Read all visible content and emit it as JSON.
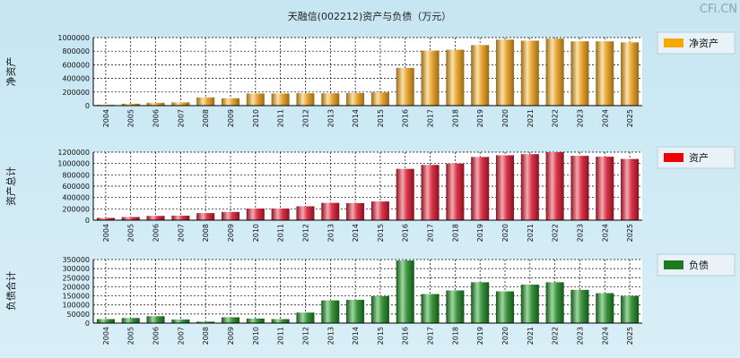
{
  "title": "天融信(002212)资产与负债（万元）",
  "watermark": "CFi.CN",
  "chart_data": [
    {
      "type": "bar",
      "key": "net-assets",
      "title": "天融信(002212)资产与负债（万元）",
      "ylabel": "净资产",
      "legend": "净资产",
      "colors": {
        "legend": "#f5a800",
        "base": "#e8a636",
        "light": "#fbe1a8",
        "dark": "#9a6a14"
      },
      "categories": [
        "2004",
        "2005",
        "2006",
        "2007",
        "2008",
        "2009",
        "2010",
        "2011",
        "2012",
        "2013",
        "2014",
        "2015",
        "2016",
        "2017",
        "2018",
        "2019",
        "2020",
        "2021",
        "2022",
        "2023",
        "2024",
        "2025"
      ],
      "values": [
        12000,
        28000,
        42000,
        48000,
        120000,
        108000,
        178000,
        178000,
        182000,
        182000,
        185000,
        195000,
        555000,
        808000,
        822000,
        890000,
        970000,
        955000,
        985000,
        945000,
        945000,
        930000
      ],
      "ylim": [
        0,
        1000000
      ],
      "yticks": [
        {
          "v": 0,
          "label": "0"
        },
        {
          "v": 200000,
          "label": "200000"
        },
        {
          "v": 400000,
          "label": "400000"
        },
        {
          "v": 600000,
          "label": "600000"
        },
        {
          "v": 800000,
          "label": "800000"
        },
        {
          "v": 1000000,
          "label": "1000000"
        }
      ]
    },
    {
      "type": "bar",
      "key": "total-assets",
      "ylabel": "资产总计",
      "legend": "资产",
      "colors": {
        "legend": "#ee0000",
        "base": "#d8364a",
        "light": "#f7a8b0",
        "dark": "#8c1020"
      },
      "categories": [
        "2004",
        "2005",
        "2006",
        "2007",
        "2008",
        "2009",
        "2010",
        "2011",
        "2012",
        "2013",
        "2014",
        "2015",
        "2016",
        "2017",
        "2018",
        "2019",
        "2020",
        "2021",
        "2022",
        "2023",
        "2024",
        "2025"
      ],
      "values": [
        40000,
        55000,
        75000,
        80000,
        125000,
        145000,
        205000,
        205000,
        245000,
        305000,
        300000,
        330000,
        905000,
        975000,
        1000000,
        1115000,
        1145000,
        1165000,
        1210000,
        1135000,
        1120000,
        1080000
      ],
      "ylim": [
        0,
        1200000
      ],
      "yticks": [
        {
          "v": 0,
          "label": "0"
        },
        {
          "v": 200000,
          "label": "200000"
        },
        {
          "v": 400000,
          "label": "400000"
        },
        {
          "v": 600000,
          "label": "600000"
        },
        {
          "v": 800000,
          "label": "800000"
        },
        {
          "v": 1000000,
          "label": "1000000"
        },
        {
          "v": 1200000,
          "label": "1200000"
        }
      ]
    },
    {
      "type": "bar",
      "key": "liabilities",
      "ylabel": "负债合计",
      "legend": "负债",
      "colors": {
        "legend": "#1e7a1e",
        "base": "#3e9440",
        "light": "#9ed8a0",
        "dark": "#13561a"
      },
      "categories": [
        "2004",
        "2005",
        "2006",
        "2007",
        "2008",
        "2009",
        "2010",
        "2011",
        "2012",
        "2013",
        "2014",
        "2015",
        "2016",
        "2017",
        "2018",
        "2019",
        "2020",
        "2021",
        "2022",
        "2023",
        "2024",
        "2025"
      ],
      "values": [
        22000,
        28000,
        38000,
        20000,
        8000,
        32000,
        25000,
        22000,
        58000,
        125000,
        128000,
        148000,
        345000,
        160000,
        180000,
        225000,
        175000,
        212000,
        225000,
        183000,
        165000,
        150000
      ],
      "ylim": [
        0,
        350000
      ],
      "yticks": [
        {
          "v": 0,
          "label": "0"
        },
        {
          "v": 50000,
          "label": "50000"
        },
        {
          "v": 100000,
          "label": "100000"
        },
        {
          "v": 150000,
          "label": "150000"
        },
        {
          "v": 200000,
          "label": "200000"
        },
        {
          "v": 250000,
          "label": "250000"
        },
        {
          "v": 300000,
          "label": "300000"
        },
        {
          "v": 350000,
          "label": "350000"
        }
      ]
    }
  ]
}
